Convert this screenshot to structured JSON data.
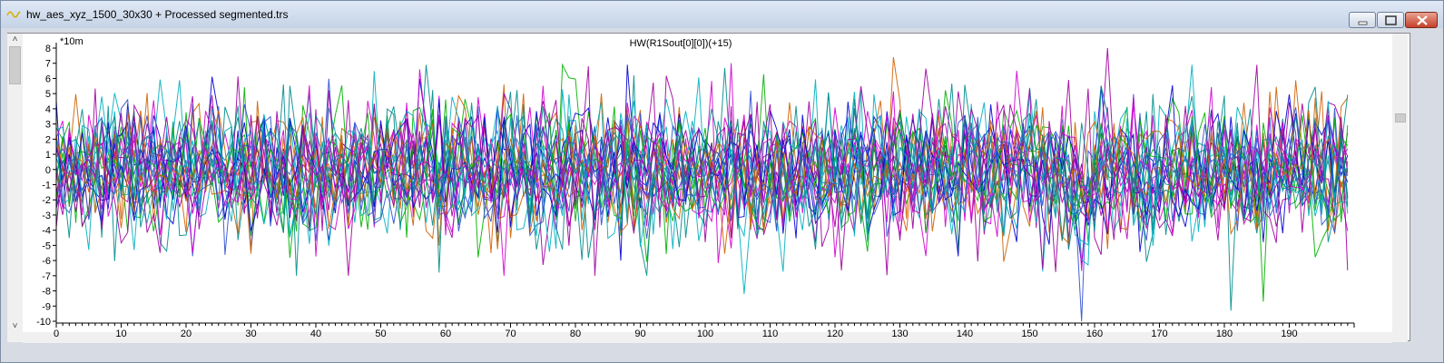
{
  "window": {
    "title": "hw_aes_xyz_1500_30x30 + Processed segmented.trs"
  },
  "chart_data": {
    "type": "line",
    "title": "HW(R1Sout[0][0])(+15)",
    "y_unit_label": "*10m",
    "xlim": [
      0,
      200
    ],
    "ylim": [
      -10,
      8
    ],
    "x_ticks": [
      0,
      10,
      20,
      30,
      40,
      50,
      60,
      70,
      80,
      90,
      100,
      110,
      120,
      130,
      140,
      150,
      160,
      170,
      180,
      190
    ],
    "y_ticks": [
      8,
      7,
      6,
      5,
      4,
      3,
      2,
      1,
      0,
      -1,
      -2,
      -3,
      -4,
      -5,
      -6,
      -7,
      -8,
      -9,
      -10
    ],
    "grid": false,
    "legend": "none",
    "series_colors": [
      "#00b000",
      "#0000d0",
      "#d000d0",
      "#00b0c0",
      "#d06000",
      "#3050d0",
      "#a000a0",
      "#008c8c"
    ],
    "series_count": 24,
    "points_per_series": 200,
    "notable_features": [
      {
        "x": 158,
        "y": -10.0
      },
      {
        "x": 162,
        "y": 8.0
      },
      {
        "x": 129,
        "y": 7.4
      },
      {
        "x": 106,
        "y": -8.2
      },
      {
        "x": 181,
        "y": -9.3
      },
      {
        "x": 186,
        "y": -8.7
      },
      {
        "x": 104,
        "y": 7.0
      },
      {
        "x": 78,
        "y": 6.9
      },
      {
        "x": 88,
        "y": 6.9
      }
    ]
  }
}
